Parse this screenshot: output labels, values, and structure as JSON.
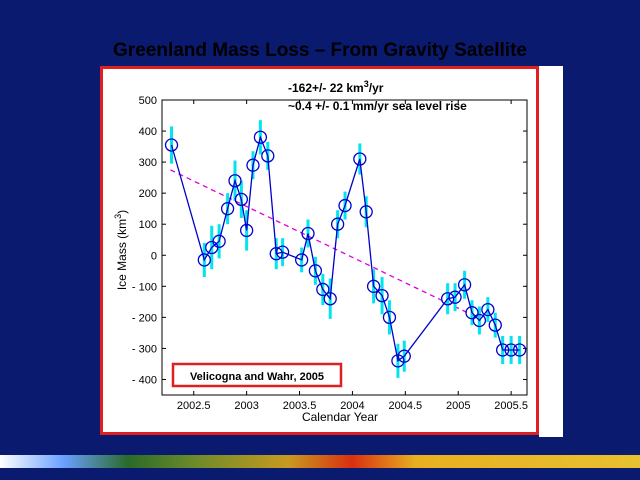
{
  "slide_title": "Greenland Mass Loss – From Gravity Satellite",
  "annotation_line1_prefix": "-162+/- 22 km",
  "annotation_line1_exp": "3",
  "annotation_line1_suffix": "/yr",
  "annotation_line2": "~0.4 +/- 0.1 mm/yr sea level rise",
  "citation": "Velicogna and Wahr, 2005",
  "colors": {
    "background": "#0a1a6e",
    "panel_border": "#e02020",
    "series_line": "#0000cc",
    "error_bars": "#00e5ee",
    "trend_line": "#dd00dd"
  },
  "chart_data": {
    "type": "scatter",
    "xlabel": "Calendar Year",
    "ylabel_prefix": "Ice Mass (km",
    "ylabel_exp": "3",
    "ylabel_suffix": ")",
    "xlim": [
      2002.2,
      2005.65
    ],
    "ylim": [
      -450,
      500
    ],
    "xticks": [
      2002.5,
      2003,
      2003.5,
      2004,
      2004.5,
      2005,
      2005.5
    ],
    "xtick_labels": [
      "2002.5",
      "2003",
      "2003.5",
      "2004",
      "2004.5",
      "2005",
      "2005.5"
    ],
    "yticks": [
      500,
      400,
      300,
      200,
      100,
      0,
      -100,
      -200,
      -300,
      -400
    ],
    "ytick_labels": [
      "500",
      "400",
      "300",
      "200",
      "100",
      "0",
      "- 100",
      "- 200",
      "- 300",
      "- 400"
    ],
    "grid": false,
    "trend": {
      "x": [
        2002.28,
        2005.18
      ],
      "y": [
        275,
        -200
      ],
      "style": "dashed"
    },
    "series": [
      {
        "x": [
          2002.29,
          2002.6,
          2002.67,
          2002.74,
          2002.82,
          2002.89,
          2002.95,
          2003.0,
          2003.06,
          2003.13,
          2003.2,
          2003.28,
          2003.34,
          2003.52,
          2003.58,
          2003.65,
          2003.72,
          2003.79,
          2003.86,
          2003.93,
          2004.07,
          2004.13,
          2004.2,
          2004.28,
          2004.35,
          2004.43,
          2004.49,
          2004.9,
          2004.97,
          2005.06,
          2005.13,
          2005.2,
          2005.28,
          2005.35,
          2005.42,
          2005.5,
          2005.58
        ],
        "y": [
          355,
          -15,
          25,
          45,
          150,
          240,
          180,
          80,
          290,
          380,
          320,
          5,
          10,
          -15,
          70,
          -50,
          -110,
          -140,
          100,
          160,
          310,
          140,
          -100,
          -130,
          -200,
          -340,
          -325,
          -140,
          -135,
          -95,
          -185,
          -210,
          -175,
          -225,
          -305,
          -305,
          -305
        ],
        "err": [
          60,
          55,
          70,
          55,
          50,
          65,
          60,
          65,
          45,
          55,
          45,
          50,
          45,
          40,
          45,
          45,
          50,
          65,
          45,
          45,
          50,
          50,
          55,
          60,
          55,
          55,
          50,
          50,
          45,
          45,
          40,
          45,
          40,
          40,
          45,
          45,
          45
        ]
      }
    ]
  }
}
